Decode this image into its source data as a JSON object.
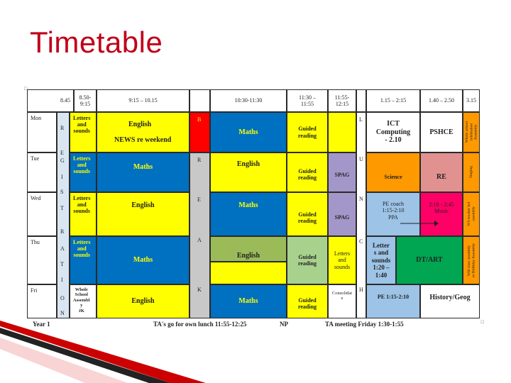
{
  "title": "Timetable",
  "corner_mark_top": "□",
  "corner_mark_bottom": "□",
  "header": {
    "t1": "8.45",
    "t2": "8.50-\n9:15",
    "t3": "9:15 – 10.15",
    "t4": "10:30-11:30",
    "t5": "11:30 –\n11:55",
    "t6": "11:55-\n12:15",
    "t7": "1.15 – 2:15",
    "t8": "1.40 – 2.50",
    "t9": "3.15"
  },
  "days": [
    "Mon",
    "Tue",
    "Wed",
    "Thu",
    "Fri"
  ],
  "registration_letters": [
    "R",
    "E",
    "G",
    "I",
    "S",
    "T",
    "R",
    "A",
    "T",
    "I",
    "O",
    "N"
  ],
  "break_letters": [
    "B",
    "R",
    "E",
    "A",
    "K"
  ],
  "lunch_letters": [
    "L",
    "U",
    "N",
    "C",
    "H"
  ],
  "mon": {
    "letters": "Letters\nand\nsounds",
    "english": "English",
    "news": "NEWS re weekend",
    "maths": "Maths",
    "guided": "Guided\nreading",
    "ict": "ICT\nComputing\n- 2.10",
    "pshce": "PSHCE",
    "whole_school": "Whole school\ncelebration\nAssembly"
  },
  "tue": {
    "letters": "Letters\nand\nsounds",
    "maths": "Maths",
    "english": "English",
    "guided": "Guided\nreading",
    "spag": "SPAG",
    "science": "Science",
    "re": "RE",
    "singing": "Singing"
  },
  "wed": {
    "letters": "Letters\nand\nsounds",
    "english": "English",
    "maths": "Maths",
    "guided": "Guided\nreading",
    "spag": "SPAG",
    "pe": "PE coach\n1:15-2:10\nPPA",
    "music": "2:10 - 2:45\nMusic",
    "ws": "WS teacher led\nassembly"
  },
  "thu": {
    "letters": "Letters\nand\nsounds",
    "maths": "Maths",
    "english": "English",
    "guided": "Guided\nreading",
    "letters2": "Letters\nand\nsounds",
    "letters3": "Letter\ns and\nsounds\n1:20 –\n1:40",
    "dtart": "DT/ART",
    "will": "Will class assembly\nor Birthday Assembly"
  },
  "fri": {
    "whole": "Whole\nSchool\nAssembl\ny\nJK",
    "english": "English",
    "maths": "Maths",
    "guided": "Guided\nreading",
    "consolidate": "Consolidat\ne",
    "pe": "PE 1:15-2:10",
    "history": "History/Geog"
  },
  "footer": {
    "year": "Year 1",
    "ta_lunch": "TA's go for own lunch 11:55-12:25",
    "np": "NP",
    "ta_meeting": "TA meeting Friday 1:30-1:55"
  }
}
